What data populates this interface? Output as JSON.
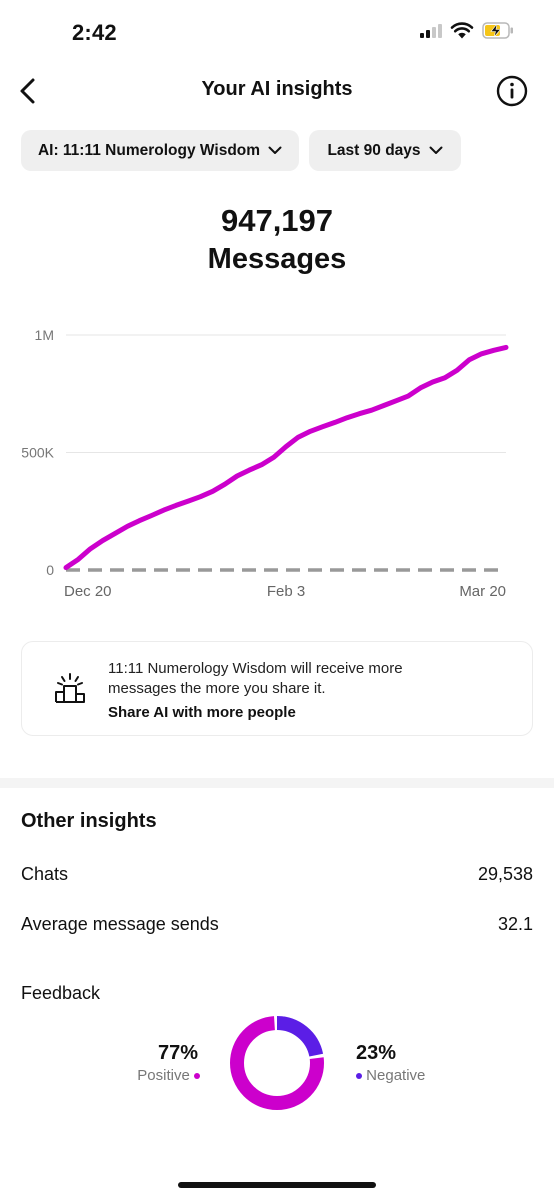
{
  "status_bar": {
    "time": "2:42"
  },
  "header": {
    "title": "Your AI insights"
  },
  "filters": {
    "ai_label": "AI: 11:11 Numerology Wisdom",
    "range_label": "Last 90 days"
  },
  "summary": {
    "value": "947,197",
    "label": "Messages"
  },
  "chart_data": {
    "type": "line",
    "x_ticks": [
      "Dec 20",
      "Feb 3",
      "Mar 20"
    ],
    "y_ticks": [
      "1M",
      "500K",
      "0"
    ],
    "ylim": [
      0,
      1000000
    ],
    "grid": true,
    "series": [
      {
        "color": "#cc00cc",
        "values": [
          10000,
          45000,
          90000,
          125000,
          155000,
          185000,
          210000,
          232000,
          255000,
          275000,
          293000,
          312000,
          335000,
          365000,
          400000,
          425000,
          448000,
          480000,
          525000,
          565000,
          590000,
          610000,
          628000,
          648000,
          665000,
          680000,
          700000,
          720000,
          740000,
          775000,
          800000,
          818000,
          850000,
          895000,
          920000,
          935000,
          947197
        ]
      },
      {
        "color": "#999999",
        "style": "dashed",
        "values": [
          0,
          0
        ]
      }
    ]
  },
  "share_card": {
    "text": "11:11 Numerology Wisdom will receive more messages the more you share it.",
    "link": "Share AI with more people"
  },
  "other_insights": {
    "title": "Other insights",
    "chats_label": "Chats",
    "chats_value": "29,538",
    "avg_label": "Average message sends",
    "avg_value": "32.1",
    "feedback_label": "Feedback",
    "positive_pct": "77%",
    "positive_label": "Positive",
    "negative_pct": "23%",
    "negative_label": "Negative",
    "positive_value": 77,
    "negative_value": 23,
    "positive_color": "#cc00cc",
    "negative_color": "#5b1ee6"
  }
}
